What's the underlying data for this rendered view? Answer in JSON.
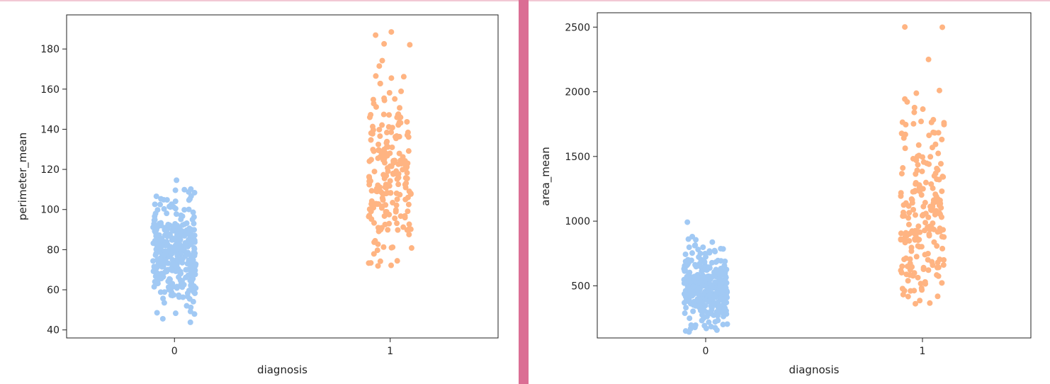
{
  "colors": {
    "class0": "#a1c9f4",
    "class1": "#ffb482",
    "divider": "#db6e94",
    "top_rule": "#f2c8d4"
  },
  "chart_data": [
    {
      "type": "scatter",
      "style": "strip",
      "xlabel": "diagnosis",
      "ylabel": "perimeter_mean",
      "categories": [
        "0",
        "1"
      ],
      "yticks": [
        40,
        60,
        80,
        100,
        120,
        140,
        160,
        180
      ],
      "ylim": [
        36,
        197
      ],
      "grid": false,
      "legend": "none",
      "series": [
        {
          "category": "0",
          "count": 357,
          "center": 78,
          "spread": 11.8,
          "min": 43.8,
          "max": 114.6,
          "highlights": [
            43.8,
            47.9,
            48.3,
            52.0,
            54.1,
            56.3,
            57.3,
            104.1,
            104.8,
            106.7,
            108.4,
            114.6
          ]
        },
        {
          "category": "1",
          "count": 212,
          "center": 115,
          "spread": 21.8,
          "min": 71.9,
          "max": 188.5,
          "highlights": [
            71.9,
            73.3,
            74.2,
            77.9,
            79.7,
            81.2,
            82.7,
            147.2,
            152.8,
            155.1,
            158.9,
            165.5,
            166.2,
            171.5,
            174.2,
            182.1,
            186.9,
            188.5
          ]
        }
      ]
    },
    {
      "type": "scatter",
      "style": "strip",
      "xlabel": "diagnosis",
      "ylabel": "area_mean",
      "categories": [
        "0",
        "1"
      ],
      "yticks": [
        500,
        1000,
        1500,
        2000,
        2500
      ],
      "ylim": [
        97,
        2611
      ],
      "grid": false,
      "legend": "none",
      "series": [
        {
          "category": "0",
          "count": 357,
          "center": 463,
          "spread": 134,
          "min": 143.5,
          "max": 992.1,
          "highlights": [
            143.5,
            170.4,
            178.8,
            203.9,
            221.8,
            748.9,
            781.0,
            797.8,
            838.1,
            880.2,
            992.1
          ]
        },
        {
          "category": "1",
          "count": 212,
          "center": 978,
          "spread": 368,
          "min": 361.6,
          "max": 2501,
          "highlights": [
            361.6,
            386.0,
            432.0,
            467.8,
            1686,
            1747,
            1761,
            1841,
            1878,
            2010,
            2250,
            2499,
            2501
          ]
        }
      ]
    }
  ]
}
